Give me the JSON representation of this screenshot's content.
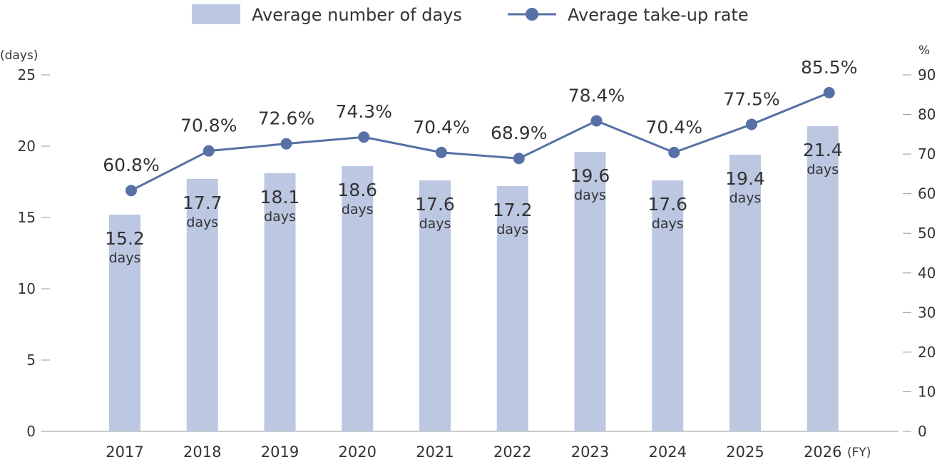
{
  "legend": {
    "bar_label": "Average number of days",
    "line_label": "Average take-up rate"
  },
  "axes": {
    "left_unit": "(days)",
    "right_unit": "%",
    "x_unit": "(FY)"
  },
  "colors": {
    "bar": "#bcc7e2",
    "line": "#5770a6",
    "text": "#333333",
    "axis": "#999999"
  },
  "chart_data": {
    "type": "bar",
    "categories": [
      "2017",
      "2018",
      "2019",
      "2020",
      "2021",
      "2022",
      "2023",
      "2024",
      "2025",
      "2026"
    ],
    "x_unit": "(FY)",
    "series": [
      {
        "name": "Average number of days",
        "type": "bar",
        "axis": "left",
        "values": [
          15.2,
          17.7,
          18.1,
          18.6,
          17.6,
          17.2,
          19.6,
          17.6,
          19.4,
          21.4
        ],
        "labels": [
          "15.2",
          "17.7",
          "18.1",
          "18.6",
          "17.6",
          "17.2",
          "19.6",
          "17.6",
          "19.4",
          "21.4"
        ],
        "label_unit": "days"
      },
      {
        "name": "Average take-up rate",
        "type": "line",
        "axis": "right",
        "values": [
          60.8,
          70.8,
          72.6,
          74.3,
          70.4,
          68.9,
          78.4,
          70.4,
          77.5,
          85.5
        ],
        "labels": [
          "60.8%",
          "70.8%",
          "72.6%",
          "74.3%",
          "70.4%",
          "68.9%",
          "78.4%",
          "70.4%",
          "77.5%",
          "85.5%"
        ]
      }
    ],
    "y_left": {
      "label": "(days)",
      "lim": [
        0,
        25
      ],
      "ticks": [
        "0",
        "5",
        "10",
        "15",
        "20",
        "25"
      ]
    },
    "y_right": {
      "label": "%",
      "lim": [
        0,
        90
      ],
      "ticks": [
        "0",
        "10",
        "20",
        "30",
        "40",
        "50",
        "60",
        "70",
        "80",
        "90"
      ]
    },
    "grid": false,
    "legend_position": "top-center"
  }
}
